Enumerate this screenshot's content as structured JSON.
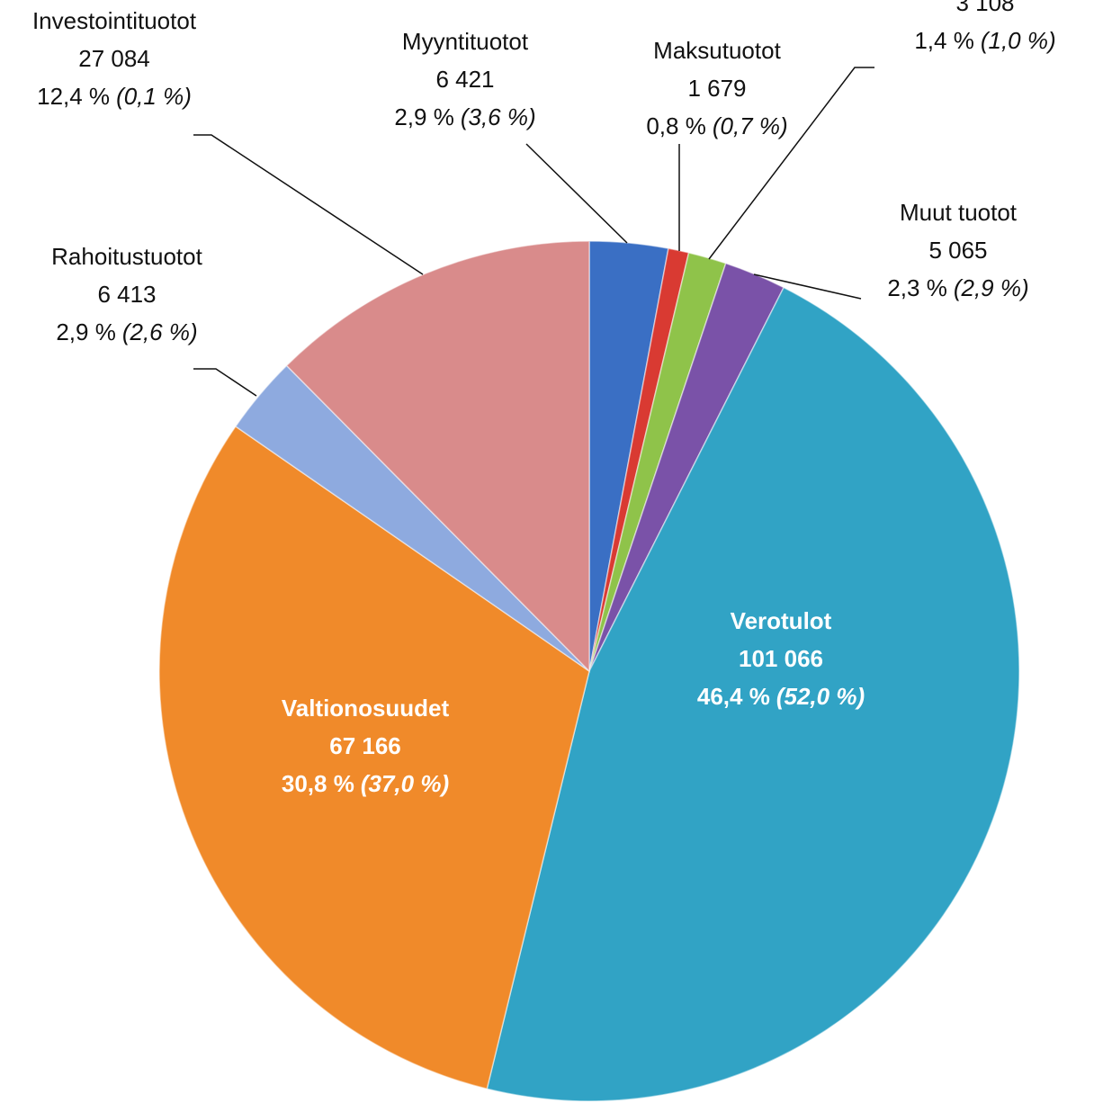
{
  "chart_data": {
    "type": "pie",
    "categories": [
      "Myyntituotot",
      "Maksutuotot",
      null,
      "Muut tuotot",
      "Verotulot",
      "Valtionosuudet",
      "Rahoitustuotot",
      "Investointituotot"
    ],
    "values": [
      6421,
      1679,
      3108,
      5065,
      101066,
      67166,
      6413,
      27084
    ],
    "value_labels": [
      "6 421",
      "1 679",
      "3 108",
      "5 065",
      "101 066",
      "67 166",
      "6 413",
      "27 084"
    ],
    "shares": [
      "2,9 %",
      "0,8 %",
      "1,4 %",
      "2,3 %",
      "46,4 %",
      "30,8 %",
      "2,9 %",
      "12,4 %"
    ],
    "previous": [
      "(3,6 %)",
      "(0,7 %)",
      "(1,0 %)",
      "(2,9 %)",
      "(52,0 %)",
      "(37,0 %)",
      "(2,6 %)",
      "(0,1 %)"
    ],
    "colors": [
      "#3a6fc4",
      "#d93a32",
      "#8fc34a",
      "#7a52a8",
      "#31a3c5",
      "#f08a2a",
      "#8eaadf",
      "#d98b8b"
    ]
  }
}
